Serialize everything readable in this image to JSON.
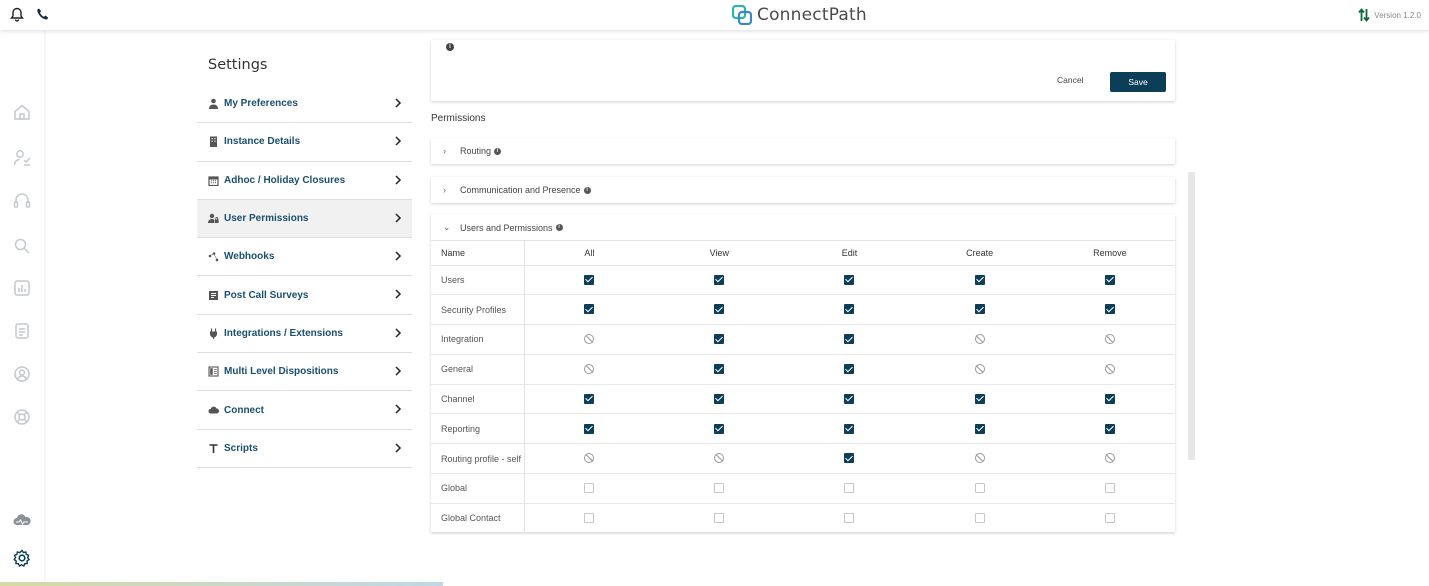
{
  "header": {
    "app_name": "ConnectPath",
    "version": "Version 1.2.0",
    "icons": [
      "bell-icon",
      "phone-icon",
      "sort-icon"
    ]
  },
  "rail": {
    "icons": [
      "home-icon",
      "agents-icon",
      "headset-icon",
      "search-icon",
      "reports-icon",
      "tasks-icon",
      "contacts-icon",
      "support-icon",
      "cloud-icon",
      "settings-icon"
    ]
  },
  "settings": {
    "title": "Settings",
    "menu": [
      {
        "label": "My Preferences",
        "icon": "user-icon"
      },
      {
        "label": "Instance Details",
        "icon": "building-icon"
      },
      {
        "label": "Adhoc / Holiday Closures",
        "icon": "calendar-icon"
      },
      {
        "label": "User Permissions",
        "icon": "users-lock-icon",
        "active": true
      },
      {
        "label": "Webhooks",
        "icon": "webhook-icon"
      },
      {
        "label": "Post Call Surveys",
        "icon": "survey-icon"
      },
      {
        "label": "Integrations / Extensions",
        "icon": "plug-icon"
      },
      {
        "label": "Multi Level Dispositions",
        "icon": "list-icon"
      },
      {
        "label": "Connect",
        "icon": "cloud-icon"
      },
      {
        "label": "Scripts",
        "icon": "text-icon"
      }
    ]
  },
  "top_card": {
    "cancel_label": "Cancel",
    "save_label": "Save"
  },
  "permissions": {
    "title": "Permissions",
    "sections": [
      {
        "label": "Routing",
        "expanded": false
      },
      {
        "label": "Communication and Presence",
        "expanded": false
      },
      {
        "label": "Users and Permissions",
        "expanded": true
      }
    ],
    "table": {
      "columns": [
        "Name",
        "All",
        "View",
        "Edit",
        "Create",
        "Remove"
      ],
      "rows": [
        {
          "name": "Users",
          "states": [
            "on",
            "on",
            "on",
            "on",
            "on"
          ]
        },
        {
          "name": "Security Profiles",
          "states": [
            "on",
            "on",
            "on",
            "on",
            "on"
          ]
        },
        {
          "name": "Integration",
          "states": [
            "na",
            "on",
            "on",
            "na",
            "na"
          ]
        },
        {
          "name": "General",
          "states": [
            "na",
            "on",
            "on",
            "na",
            "na"
          ]
        },
        {
          "name": "Channel",
          "states": [
            "on",
            "on",
            "on",
            "on",
            "on"
          ]
        },
        {
          "name": "Reporting",
          "states": [
            "on",
            "on",
            "on",
            "on",
            "on"
          ]
        },
        {
          "name": "Routing profile - self",
          "states": [
            "na",
            "na",
            "on",
            "na",
            "na"
          ]
        },
        {
          "name": "Global",
          "states": [
            "off",
            "off",
            "off",
            "off",
            "off"
          ]
        },
        {
          "name": "Global Contact",
          "states": [
            "off",
            "off",
            "off",
            "off",
            "off"
          ]
        }
      ]
    }
  },
  "colors": {
    "accent": "#0d3e58",
    "menu_text": "#1a4f6e",
    "logo_teal": "#2bb3a6"
  }
}
